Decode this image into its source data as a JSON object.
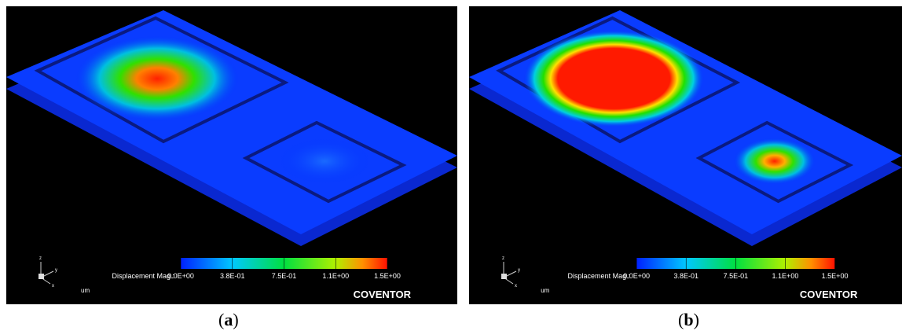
{
  "panels": [
    {
      "label": "a",
      "colorbar_title": "Displacement Mag.:",
      "colorbar_ticks": [
        "0.0E+00",
        "3.8E-01",
        "7.5E-01",
        "1.1E+00",
        "1.5E+00"
      ],
      "unit": "um",
      "brand": "COVENTOR",
      "axis_labels": [
        "z",
        "y",
        "x"
      ]
    },
    {
      "label": "b",
      "colorbar_title": "Displacement Mag.:",
      "colorbar_ticks": [
        "0.0E+00",
        "3.8E-01",
        "7.5E-01",
        "1.1E+00",
        "1.5E+00"
      ],
      "unit": "um",
      "brand": "COVENTOR",
      "axis_labels": [
        "z",
        "y",
        "x"
      ]
    }
  ]
}
